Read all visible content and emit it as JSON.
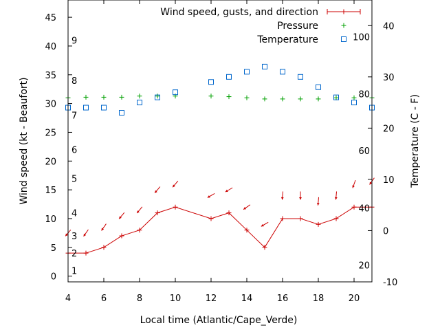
{
  "chart_data": {
    "type": "line",
    "xlabel": "Local time (Atlantic/Cape_Verde)",
    "ylabel_left": "Wind speed (kt - Beaufort)",
    "ylabel_right": "Temperature (C - F)",
    "x_range": [
      4,
      21
    ],
    "x_ticks": [
      4,
      6,
      8,
      10,
      12,
      14,
      16,
      18,
      20
    ],
    "y_left_range": [
      -1,
      48
    ],
    "y_left_ticks": [
      0,
      5,
      10,
      15,
      20,
      25,
      30,
      35,
      40,
      45
    ],
    "y_right_range": [
      -10,
      45
    ],
    "y_right_ticks": [
      -10,
      0,
      10,
      20,
      30,
      40
    ],
    "beaufort_labels": [
      {
        "label": "1",
        "kt": 1
      },
      {
        "label": "2",
        "kt": 4
      },
      {
        "label": "3",
        "kt": 7
      },
      {
        "label": "4",
        "kt": 11
      },
      {
        "label": "5",
        "kt": 17
      },
      {
        "label": "6",
        "kt": 22
      },
      {
        "label": "7",
        "kt": 28
      },
      {
        "label": "8",
        "kt": 34
      },
      {
        "label": "9",
        "kt": 41
      }
    ],
    "fahrenheit_labels": [
      {
        "label": "20",
        "celsius": -6.7
      },
      {
        "label": "40",
        "celsius": 4.4
      },
      {
        "label": "60",
        "celsius": 15.6
      },
      {
        "label": "80",
        "celsius": 26.7
      },
      {
        "label": "100",
        "celsius": 37.8
      }
    ],
    "legend": [
      {
        "name": "Wind speed, gusts, and direction",
        "color": "#cc0000",
        "symbol": "line-plus"
      },
      {
        "name": "Pressure",
        "color": "#00a000",
        "symbol": "plus"
      },
      {
        "name": "Temperature",
        "color": "#0066cc",
        "symbol": "square"
      }
    ],
    "legend_position": "top-right",
    "grid": false,
    "series": [
      {
        "name": "Wind speed, gusts, and direction",
        "axis": "left",
        "x": [
          4,
          5,
          6,
          7,
          8,
          9,
          10,
          12,
          13,
          14,
          15,
          16,
          17,
          18,
          19,
          20,
          21
        ],
        "values": [
          4,
          4,
          5,
          7,
          8,
          11,
          12,
          10,
          11,
          8,
          5,
          10,
          10,
          9,
          10,
          12,
          12
        ]
      },
      {
        "name": "Wind direction arrows",
        "axis": "left",
        "x": [
          4,
          5,
          6,
          7,
          8,
          9,
          10,
          12,
          13,
          14,
          15,
          16,
          17,
          18,
          19,
          20,
          21
        ],
        "values": [
          7.5,
          7.5,
          8.5,
          10.5,
          11.5,
          15,
          16,
          14,
          15,
          12,
          9,
          14,
          14,
          13,
          14,
          16,
          16.5
        ],
        "direction_deg": [
          40,
          35,
          35,
          40,
          40,
          40,
          40,
          60,
          60,
          55,
          60,
          5,
          0,
          5,
          5,
          20,
          35
        ]
      },
      {
        "name": "Pressure",
        "axis": "left",
        "x": [
          4,
          5,
          6,
          7,
          8,
          9,
          10,
          12,
          13,
          14,
          15,
          16,
          17,
          18,
          19,
          20,
          21
        ],
        "values": [
          31,
          31.1,
          31.1,
          31.1,
          31.3,
          31.3,
          31.3,
          31.3,
          31.2,
          31.0,
          30.8,
          30.8,
          30.8,
          30.8,
          31.0,
          31.0,
          31.0
        ]
      },
      {
        "name": "Temperature",
        "axis": "right",
        "x": [
          4,
          5,
          6,
          7,
          8,
          9,
          10,
          12,
          13,
          14,
          15,
          16,
          17,
          18,
          19,
          20,
          21
        ],
        "values": [
          24,
          24,
          24,
          23,
          25,
          26,
          27,
          29,
          30,
          31,
          32,
          31,
          30,
          28,
          26,
          25,
          24
        ]
      }
    ]
  }
}
